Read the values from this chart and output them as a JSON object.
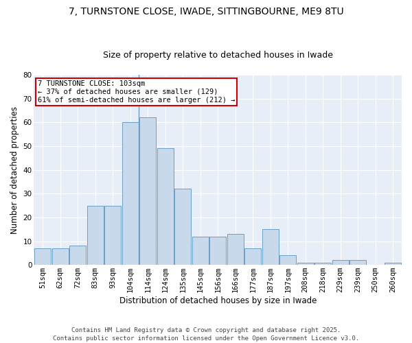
{
  "title1": "7, TURNSTONE CLOSE, IWADE, SITTINGBOURNE, ME9 8TU",
  "title2": "Size of property relative to detached houses in Iwade",
  "xlabel": "Distribution of detached houses by size in Iwade",
  "ylabel": "Number of detached properties",
  "categories": [
    "51sqm",
    "62sqm",
    "72sqm",
    "83sqm",
    "93sqm",
    "104sqm",
    "114sqm",
    "124sqm",
    "135sqm",
    "145sqm",
    "156sqm",
    "166sqm",
    "177sqm",
    "187sqm",
    "197sqm",
    "208sqm",
    "218sqm",
    "229sqm",
    "239sqm",
    "250sqm",
    "260sqm"
  ],
  "values": [
    7,
    7,
    8,
    25,
    25,
    60,
    62,
    49,
    32,
    12,
    12,
    13,
    7,
    15,
    4,
    1,
    1,
    2,
    2,
    0,
    1
  ],
  "bar_color": "#c9d9ec",
  "bar_edge_color": "#6a9ec5",
  "highlight_index": 5,
  "annotation_text": "7 TURNSTONE CLOSE: 103sqm\n← 37% of detached houses are smaller (129)\n61% of semi-detached houses are larger (212) →",
  "annotation_box_color": "white",
  "annotation_box_edge": "#cc0000",
  "ylim": [
    0,
    80
  ],
  "yticks": [
    0,
    10,
    20,
    30,
    40,
    50,
    60,
    70,
    80
  ],
  "bg_color": "#e8eef8",
  "footer_text": "Contains HM Land Registry data © Crown copyright and database right 2025.\nContains public sector information licensed under the Open Government Licence v3.0.",
  "title1_fontsize": 10,
  "title2_fontsize": 9,
  "xlabel_fontsize": 8.5,
  "ylabel_fontsize": 8.5,
  "tick_fontsize": 7.5,
  "annotation_fontsize": 7.5,
  "footer_fontsize": 6.5
}
